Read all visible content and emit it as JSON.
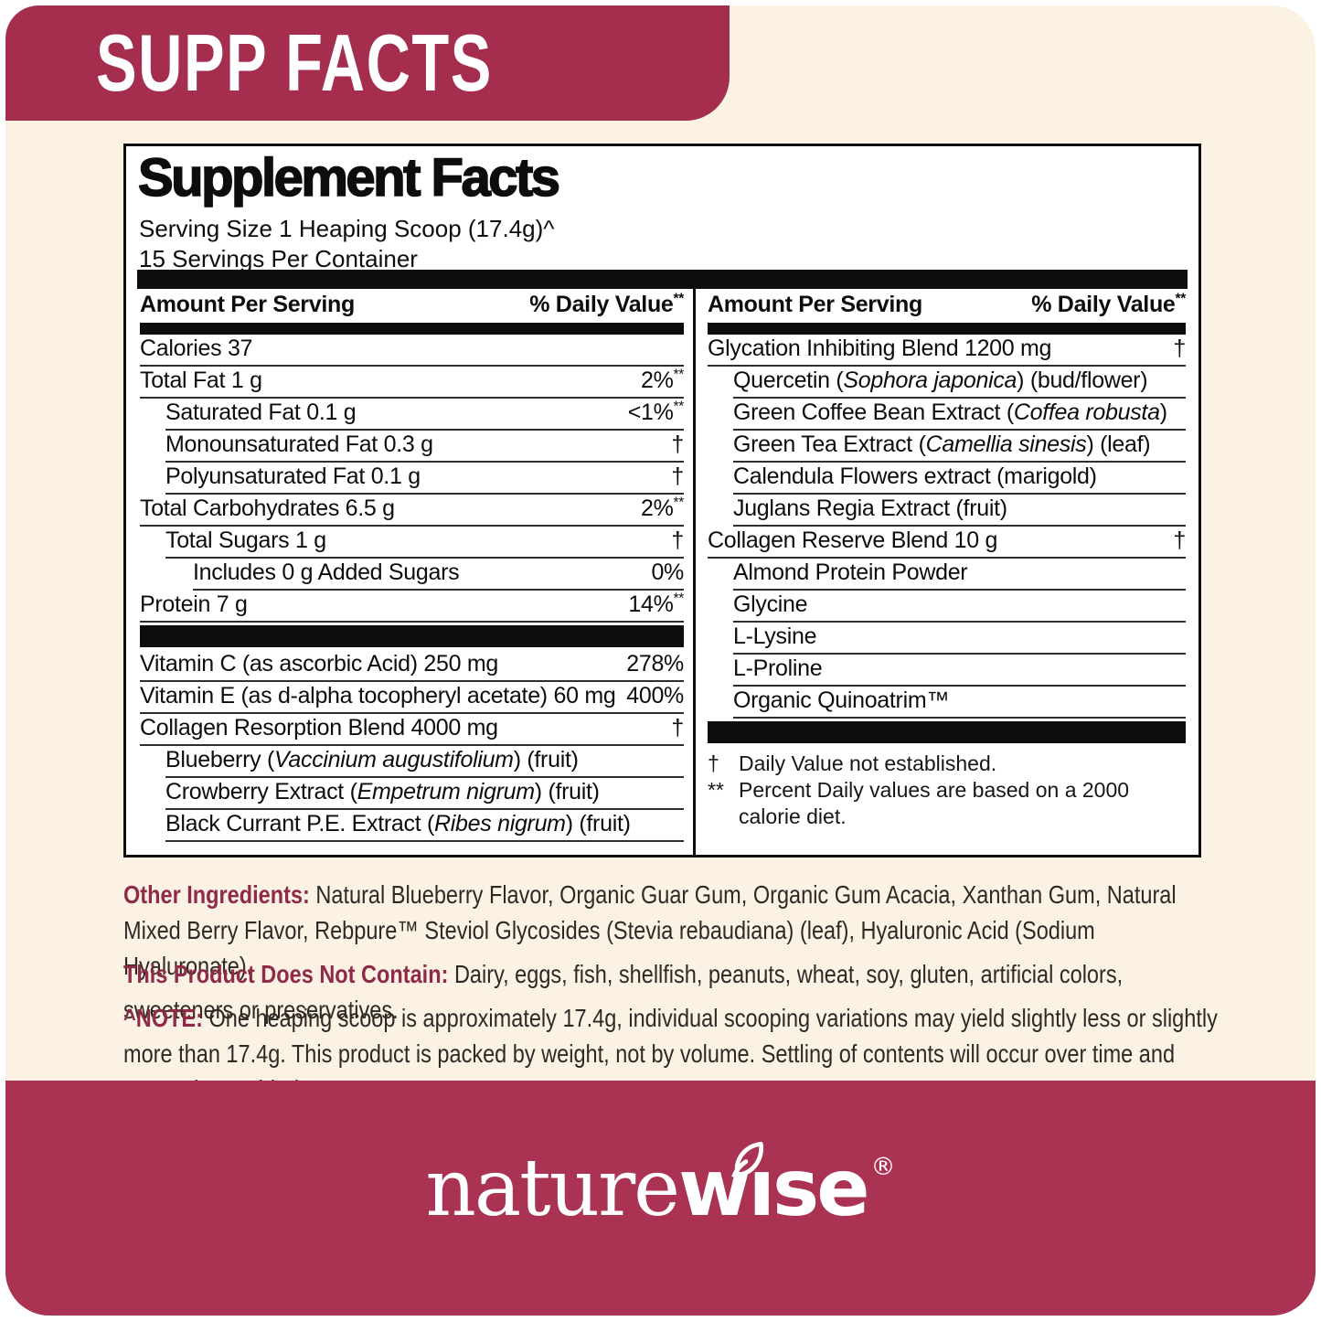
{
  "header": {
    "tab_label": "SUPP FACTS"
  },
  "panel": {
    "title": "Supplement Facts",
    "serving_size": "Serving Size 1 Heaping Scoop (17.4g)^",
    "servings_per_container": "15 Servings Per Container",
    "column_header": {
      "amount": "Amount Per Serving",
      "daily_value": "% Daily Value{{**}}"
    },
    "left_rows": [
      {
        "name": "Calories 37",
        "value": "",
        "indent": 0
      },
      {
        "name": "Total Fat 1 g",
        "value": "2%{{**}}",
        "indent": 0
      },
      {
        "name": "Saturated Fat 0.1 g",
        "value": "<1%{{**}}",
        "indent": 1
      },
      {
        "name": "Monounsaturated Fat 0.3 g",
        "value": "†",
        "indent": 1
      },
      {
        "name": "Polyunsaturated Fat 0.1 g",
        "value": "†",
        "indent": 1
      },
      {
        "name": "Total Carbohydrates 6.5 g",
        "value": "2%{{**}}",
        "indent": 0
      },
      {
        "name": "Total Sugars 1 g",
        "value": "†",
        "indent": 1
      },
      {
        "name": "Includes 0 g Added Sugars",
        "value": "0%",
        "indent": 2
      },
      {
        "name": "Protein 7 g",
        "value": "14%{{**}}",
        "indent": 0
      },
      {
        "bar": true
      },
      {
        "name": "Vitamin C (as ascorbic Acid) 250 mg",
        "value": "278%",
        "indent": 0
      },
      {
        "name": "Vitamin E (as d-alpha tocopheryl acetate) 60 mg",
        "value": "400%",
        "indent": 0
      },
      {
        "name": "Collagen Resorption Blend 4000 mg",
        "value": "†",
        "indent": 0
      },
      {
        "name": "Blueberry (*Vaccinium augustifolium*) (fruit)",
        "value": "",
        "indent": 1
      },
      {
        "name": "Crowberry Extract (*Empetrum nigrum*) (fruit)",
        "value": "",
        "indent": 1
      },
      {
        "name": "Black Currant P.E. Extract (*Ribes nigrum*) (fruit)",
        "value": "",
        "indent": 1
      }
    ],
    "right_rows": [
      {
        "name": "Glycation Inhibiting Blend 1200 mg",
        "value": "†",
        "indent": 0
      },
      {
        "name": "Quercetin (*Sophora japonica*) (bud/flower)",
        "value": "",
        "indent": 1
      },
      {
        "name": "Green Coffee Bean Extract (*Coffea robusta*)",
        "value": "",
        "indent": 1
      },
      {
        "name": "Green Tea Extract (*Camellia sinesis*) (leaf)",
        "value": "",
        "indent": 1
      },
      {
        "name": "Calendula Flowers extract (marigold)",
        "value": "",
        "indent": 1
      },
      {
        "name": "Juglans Regia Extract (fruit)",
        "value": "",
        "indent": 1
      },
      {
        "name": "Collagen Reserve Blend 10 g",
        "value": "†",
        "indent": 0
      },
      {
        "name": "Almond Protein Powder",
        "value": "",
        "indent": 1
      },
      {
        "name": "Glycine",
        "value": "",
        "indent": 1
      },
      {
        "name": "L-Lysine",
        "value": "",
        "indent": 1
      },
      {
        "name": "L-Proline",
        "value": "",
        "indent": 1
      },
      {
        "name": "Organic Quinoatrim™",
        "value": "",
        "indent": 1
      },
      {
        "bar": true
      }
    ],
    "footnotes": [
      {
        "mark": "†",
        "text": "Daily Value not established."
      },
      {
        "mark": "**",
        "text": "Percent Daily values are based on a 2000 calorie diet."
      }
    ]
  },
  "sections": [
    {
      "label": "Other Ingredients:",
      "text": " Natural Blueberry Flavor, Organic Guar Gum, Organic Gum Acacia, Xanthan Gum, Natural Mixed Berry Flavor, Rebpure™ Steviol Glycosides (Stevia rebaudiana) (leaf), Hyaluronic Acid (Sodium Hyaluronate)."
    },
    {
      "label": "This Product Does Not Contain:",
      "text": " Dairy, eggs, fish, shellfish, peanuts, wheat, soy, gluten, artificial colors, sweeteners or preservatives."
    },
    {
      "label": "^NOTE:",
      "text": " One heaping scoop is approximately 17.4g, individual scooping variations may yield slightly less or slightly more than 17.4g. This product is packed by weight, not by volume. Settling of contents will occur over time and cannot be avoided."
    }
  ],
  "footer": {
    "brand_light": "nature",
    "brand_bold": "wıse",
    "reg_mark": "®",
    "leaf_icon": "leaf-icon"
  },
  "colors": {
    "tab": "#a52e4e",
    "band": "#aa3353",
    "accent": "#8e2b49",
    "cream": "#fbf2e4"
  }
}
